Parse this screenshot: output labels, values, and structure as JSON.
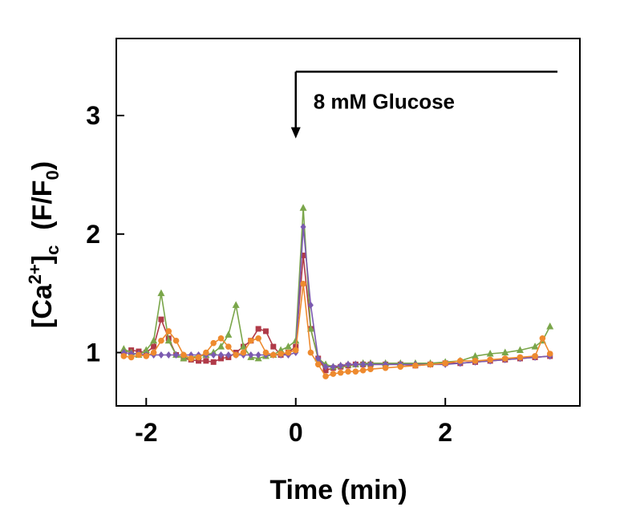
{
  "chart_data": {
    "type": "line",
    "title": "",
    "xlabel": "Time (min)",
    "ylabel": {
      "main": "[Ca",
      "sup": "2+",
      "close": "]",
      "sub": "c",
      "gap": "  (F/F",
      "sub2": "0",
      "end": ")"
    },
    "xlim": [
      -2.4,
      3.8
    ],
    "ylim": [
      0.55,
      3.65
    ],
    "xticks": [
      -2,
      0,
      2
    ],
    "xtick_labels": [
      "-2",
      "0",
      "2"
    ],
    "yticks": [
      1,
      2,
      3
    ],
    "ytick_labels": [
      "1",
      "2",
      "3"
    ],
    "annotation": {
      "label": "8 mM Glucose",
      "arrow_x": 0,
      "bar_from_x": 0,
      "bar_to_x": 3.5,
      "bar_y": 3.37,
      "arrow_tip_y": 2.82
    },
    "grid": false,
    "legend": "none",
    "series": [
      {
        "color": "#b03a48",
        "marker": "square",
        "x": [
          -2.3,
          -2.2,
          -2.1,
          -2.0,
          -1.9,
          -1.8,
          -1.7,
          -1.6,
          -1.5,
          -1.4,
          -1.3,
          -1.2,
          -1.1,
          -1.0,
          -0.9,
          -0.8,
          -0.7,
          -0.6,
          -0.5,
          -0.4,
          -0.3,
          -0.2,
          -0.1,
          0.0,
          0.1,
          0.2,
          0.3,
          0.4,
          0.5,
          0.6,
          0.7,
          0.8,
          0.9,
          1.0,
          1.2,
          1.4,
          1.6,
          1.8,
          2.0,
          2.2,
          2.4,
          2.6,
          2.8,
          3.0,
          3.2,
          3.4
        ],
        "y": [
          1.0,
          1.02,
          1.01,
          1.0,
          1.05,
          1.28,
          1.12,
          0.98,
          0.95,
          0.94,
          0.93,
          0.93,
          0.92,
          0.95,
          0.96,
          1.0,
          1.05,
          1.1,
          1.2,
          1.18,
          1.05,
          0.98,
          1.0,
          1.05,
          1.82,
          1.2,
          0.95,
          0.85,
          0.87,
          0.88,
          0.89,
          0.9,
          0.9,
          0.9,
          0.9,
          0.9,
          0.89,
          0.9,
          0.91,
          0.91,
          0.92,
          0.93,
          0.94,
          0.95,
          0.96,
          0.97
        ]
      },
      {
        "color": "#7aa64a",
        "marker": "triangle",
        "x": [
          -2.3,
          -2.2,
          -2.1,
          -2.0,
          -1.9,
          -1.8,
          -1.7,
          -1.6,
          -1.5,
          -1.4,
          -1.3,
          -1.2,
          -1.1,
          -1.0,
          -0.9,
          -0.8,
          -0.7,
          -0.6,
          -0.5,
          -0.4,
          -0.3,
          -0.2,
          -0.1,
          0.0,
          0.1,
          0.2,
          0.3,
          0.4,
          0.5,
          0.6,
          0.7,
          0.8,
          0.9,
          1.0,
          1.2,
          1.4,
          1.6,
          1.8,
          2.0,
          2.2,
          2.4,
          2.6,
          2.8,
          3.0,
          3.2,
          3.3,
          3.4
        ],
        "y": [
          1.03,
          1.0,
          0.98,
          1.02,
          1.1,
          1.5,
          1.1,
          0.98,
          0.95,
          0.96,
          0.97,
          0.98,
          1.0,
          1.05,
          1.15,
          1.4,
          1.05,
          0.96,
          0.95,
          0.97,
          0.98,
          1.02,
          1.05,
          1.1,
          2.22,
          1.2,
          0.95,
          0.9,
          0.88,
          0.89,
          0.9,
          0.9,
          0.91,
          0.91,
          0.91,
          0.91,
          0.91,
          0.91,
          0.92,
          0.93,
          0.97,
          0.99,
          1.0,
          1.02,
          1.05,
          1.1,
          1.22
        ]
      },
      {
        "color": "#7b5ab0",
        "marker": "diamond",
        "x": [
          -2.3,
          -2.2,
          -2.1,
          -2.0,
          -1.9,
          -1.8,
          -1.7,
          -1.6,
          -1.5,
          -1.4,
          -1.3,
          -1.2,
          -1.1,
          -1.0,
          -0.9,
          -0.8,
          -0.7,
          -0.6,
          -0.5,
          -0.4,
          -0.3,
          -0.2,
          -0.1,
          0.0,
          0.1,
          0.2,
          0.3,
          0.4,
          0.5,
          0.6,
          0.7,
          0.8,
          0.9,
          1.0,
          1.2,
          1.4,
          1.6,
          1.8,
          2.0,
          2.2,
          2.4,
          2.6,
          2.8,
          3.0,
          3.2,
          3.4
        ],
        "y": [
          1.0,
          0.99,
          0.99,
          0.98,
          0.98,
          0.98,
          0.98,
          0.98,
          0.98,
          0.98,
          0.98,
          0.98,
          0.98,
          0.98,
          0.98,
          0.98,
          0.98,
          0.98,
          0.98,
          0.98,
          0.98,
          0.98,
          0.98,
          1.0,
          2.06,
          1.4,
          0.95,
          0.88,
          0.88,
          0.89,
          0.9,
          0.9,
          0.9,
          0.9,
          0.9,
          0.9,
          0.9,
          0.9,
          0.9,
          0.91,
          0.92,
          0.93,
          0.94,
          0.95,
          0.96,
          0.97
        ]
      },
      {
        "color": "#ee8a2e",
        "marker": "circle",
        "x": [
          -2.3,
          -2.2,
          -2.1,
          -2.0,
          -1.9,
          -1.8,
          -1.7,
          -1.6,
          -1.5,
          -1.4,
          -1.3,
          -1.2,
          -1.1,
          -1.0,
          -0.9,
          -0.8,
          -0.7,
          -0.6,
          -0.5,
          -0.4,
          -0.3,
          -0.2,
          -0.1,
          0.0,
          0.1,
          0.2,
          0.3,
          0.4,
          0.5,
          0.6,
          0.7,
          0.8,
          0.9,
          1.0,
          1.2,
          1.4,
          1.6,
          1.8,
          2.0,
          2.2,
          2.4,
          2.6,
          2.8,
          3.0,
          3.2,
          3.3,
          3.4
        ],
        "y": [
          0.97,
          0.96,
          0.98,
          0.97,
          1.0,
          1.1,
          1.18,
          1.1,
          0.98,
          0.95,
          0.96,
          1.0,
          1.08,
          1.12,
          1.05,
          0.98,
          1.0,
          1.1,
          1.12,
          1.0,
          0.98,
          0.99,
          1.0,
          1.02,
          1.58,
          1.0,
          0.9,
          0.8,
          0.82,
          0.83,
          0.84,
          0.84,
          0.85,
          0.86,
          0.87,
          0.88,
          0.89,
          0.9,
          0.91,
          0.93,
          0.93,
          0.94,
          0.95,
          0.96,
          0.97,
          1.12,
          0.99
        ]
      }
    ]
  }
}
